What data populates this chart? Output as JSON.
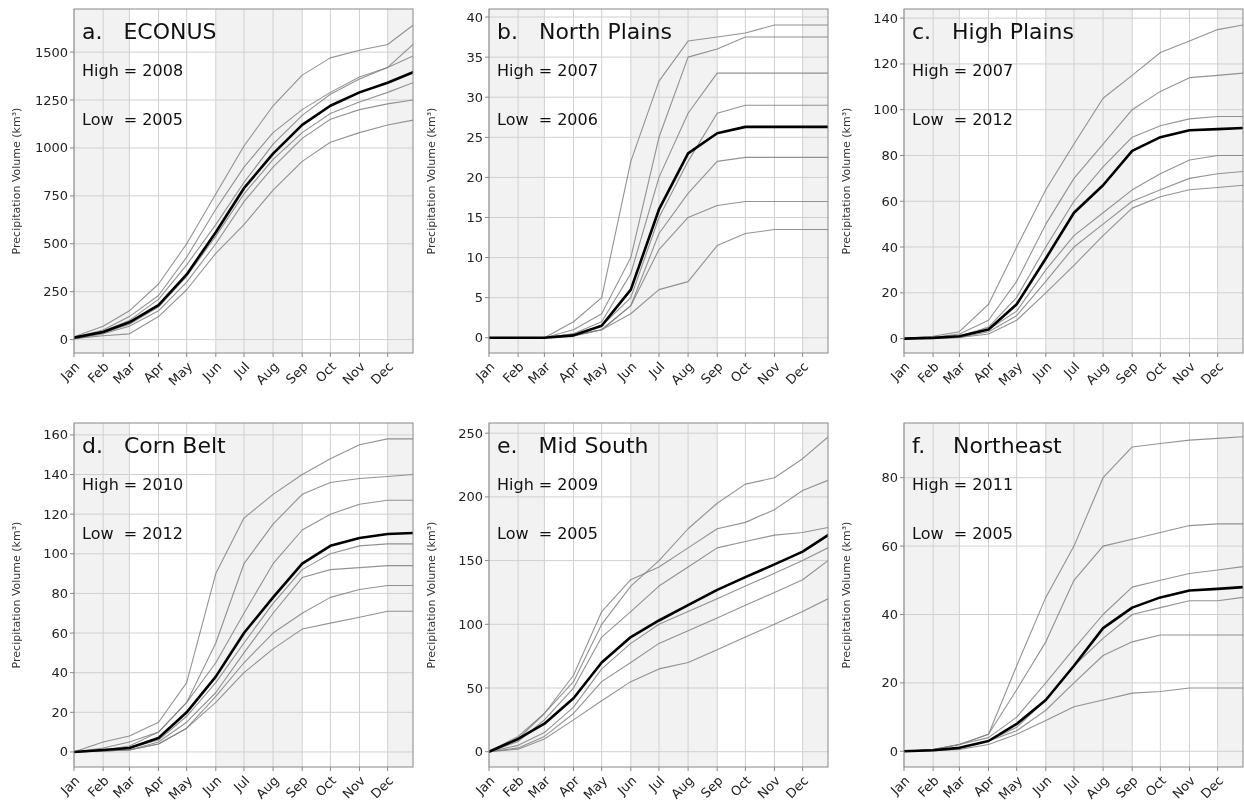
{
  "chart_data": [
    {
      "type": "line",
      "title": "a.   ECONUS",
      "ylabel": "Precipitation Volume (km³)",
      "annotations": [
        "High = 2008",
        "Low  = 2005"
      ],
      "x": [
        "--01-01",
        "--02-01",
        "--03-01",
        "--04-01",
        "--05-01",
        "--06-01",
        "--07-01",
        "--08-01",
        "--09-01",
        "--10-01",
        "--11-01",
        "--12-01",
        "--12-28"
      ],
      "xlim": [
        "--01-01",
        "--12-28"
      ],
      "xticks": [
        {
          "value": "--01-01",
          "label": "Jan"
        },
        {
          "value": "--02-01",
          "label": "Feb"
        },
        {
          "value": "--03-01",
          "label": "Mar"
        },
        {
          "value": "--04-01",
          "label": "Apr"
        },
        {
          "value": "--05-01",
          "label": "May"
        },
        {
          "value": "--06-01",
          "label": "Jun"
        },
        {
          "value": "--07-01",
          "label": "Jul"
        },
        {
          "value": "--08-01",
          "label": "Aug"
        },
        {
          "value": "--09-01",
          "label": "Sep"
        },
        {
          "value": "--10-01",
          "label": "Oct"
        },
        {
          "value": "--11-01",
          "label": "Nov"
        },
        {
          "value": "--12-01",
          "label": "Dec"
        }
      ],
      "ylim": [
        -70,
        1725
      ],
      "yticks": [
        0,
        250,
        500,
        750,
        1000,
        1250,
        1500
      ],
      "grid": true,
      "bands": [
        {
          "axis": "x",
          "from": "--01-01",
          "to": "--03-01",
          "color": "#f2f2f2"
        },
        {
          "axis": "x",
          "from": "--06-01",
          "to": "--09-01",
          "color": "#f2f2f2"
        },
        {
          "axis": "x",
          "from": "--12-01",
          "to": "--12-28",
          "color": "#f2f2f2"
        }
      ],
      "series": [
        {
          "color": "#808080",
          "values": [
            15,
            70,
            150,
            290,
            500,
            760,
            1010,
            1220,
            1380,
            1470,
            1510,
            1540,
            1640
          ]
        },
        {
          "color": "#808080",
          "values": [
            10,
            50,
            120,
            230,
            430,
            680,
            900,
            1080,
            1200,
            1290,
            1370,
            1420,
            1540
          ]
        },
        {
          "color": "#808080",
          "values": [
            10,
            45,
            100,
            210,
            390,
            600,
            820,
            1020,
            1170,
            1280,
            1360,
            1420,
            1480
          ]
        },
        {
          "color": "#808080",
          "values": [
            5,
            35,
            80,
            170,
            330,
            540,
            760,
            940,
            1080,
            1180,
            1240,
            1290,
            1340
          ]
        },
        {
          "color": "#808080",
          "values": [
            5,
            30,
            70,
            150,
            300,
            500,
            720,
            900,
            1050,
            1150,
            1200,
            1230,
            1250
          ]
        },
        {
          "color": "#808080",
          "values": [
            5,
            20,
            30,
            120,
            260,
            450,
            600,
            780,
            930,
            1030,
            1080,
            1120,
            1145
          ]
        },
        {
          "color": "#000000",
          "values": [
            10,
            40,
            90,
            180,
            340,
            560,
            790,
            970,
            1120,
            1220,
            1290,
            1340,
            1395
          ]
        }
      ]
    },
    {
      "type": "line",
      "title": "b.   North Plains",
      "ylabel": "Precipitation Volume (km³)",
      "annotations": [
        "High = 2007",
        "Low  = 2006"
      ],
      "x": [
        "--01-01",
        "--02-01",
        "--03-01",
        "--04-01",
        "--05-01",
        "--06-01",
        "--07-01",
        "--08-01",
        "--09-01",
        "--10-01",
        "--11-01",
        "--12-01",
        "--12-28"
      ],
      "xlim": [
        "--01-01",
        "--12-28"
      ],
      "xticks": [
        {
          "value": "--01-01",
          "label": "Jan"
        },
        {
          "value": "--02-01",
          "label": "Feb"
        },
        {
          "value": "--03-01",
          "label": "Mar"
        },
        {
          "value": "--04-01",
          "label": "Apr"
        },
        {
          "value": "--05-01",
          "label": "May"
        },
        {
          "value": "--06-01",
          "label": "Jun"
        },
        {
          "value": "--07-01",
          "label": "Jul"
        },
        {
          "value": "--08-01",
          "label": "Aug"
        },
        {
          "value": "--09-01",
          "label": "Sep"
        },
        {
          "value": "--10-01",
          "label": "Oct"
        },
        {
          "value": "--11-01",
          "label": "Nov"
        },
        {
          "value": "--12-01",
          "label": "Dec"
        }
      ],
      "ylim": [
        -1.9,
        41
      ],
      "yticks": [
        0,
        5,
        10,
        15,
        20,
        25,
        30,
        35,
        40
      ],
      "grid": true,
      "bands": [
        {
          "axis": "x",
          "from": "--01-01",
          "to": "--03-01",
          "color": "#f2f2f2"
        },
        {
          "axis": "x",
          "from": "--06-01",
          "to": "--09-01",
          "color": "#f2f2f2"
        },
        {
          "axis": "x",
          "from": "--12-01",
          "to": "--12-28",
          "color": "#f2f2f2"
        }
      ],
      "series": [
        {
          "color": "#808080",
          "values": [
            0,
            0,
            0,
            2,
            5,
            22,
            32,
            37,
            37.5,
            38,
            39,
            39,
            39
          ]
        },
        {
          "color": "#808080",
          "values": [
            0,
            0,
            0,
            1,
            3,
            10,
            25,
            35,
            36,
            37.5,
            37.5,
            37.5,
            37.5
          ]
        },
        {
          "color": "#808080",
          "values": [
            0,
            0,
            0,
            0.5,
            2,
            8,
            20,
            28,
            33,
            33,
            33,
            33,
            33
          ]
        },
        {
          "color": "#808080",
          "values": [
            0,
            0,
            0,
            0.5,
            1.5,
            5,
            15,
            22,
            28,
            29,
            29,
            29,
            29
          ]
        },
        {
          "color": "#808080",
          "values": [
            0,
            0,
            0,
            0.3,
            1,
            4,
            13,
            18,
            22,
            22.5,
            22.5,
            22.5,
            22.5
          ]
        },
        {
          "color": "#808080",
          "values": [
            0,
            0,
            0,
            0.2,
            1,
            4,
            11,
            15,
            16.5,
            17,
            17,
            17,
            17
          ]
        },
        {
          "color": "#808080",
          "values": [
            0,
            0,
            0,
            0.3,
            1,
            3,
            6,
            7,
            11.5,
            13,
            13.5,
            13.5,
            13.5
          ]
        },
        {
          "color": "#000000",
          "values": [
            0,
            0,
            0,
            0.3,
            1.5,
            6,
            16,
            23,
            25.5,
            26.3,
            26.3,
            26.3,
            26.3
          ]
        }
      ]
    },
    {
      "type": "line",
      "title": "c.   High Plains",
      "ylabel": "Precipitation Volume (km³)",
      "annotations": [
        "High = 2007",
        "Low  = 2012"
      ],
      "x": [
        "--01-01",
        "--02-01",
        "--03-01",
        "--04-01",
        "--05-01",
        "--06-01",
        "--07-01",
        "--08-01",
        "--09-01",
        "--10-01",
        "--11-01",
        "--12-01",
        "--12-28"
      ],
      "xlim": [
        "--01-01",
        "--12-28"
      ],
      "xticks": [
        {
          "value": "--01-01",
          "label": "Jan"
        },
        {
          "value": "--02-01",
          "label": "Feb"
        },
        {
          "value": "--03-01",
          "label": "Mar"
        },
        {
          "value": "--04-01",
          "label": "Apr"
        },
        {
          "value": "--05-01",
          "label": "May"
        },
        {
          "value": "--06-01",
          "label": "Jun"
        },
        {
          "value": "--07-01",
          "label": "Jul"
        },
        {
          "value": "--08-01",
          "label": "Aug"
        },
        {
          "value": "--09-01",
          "label": "Sep"
        },
        {
          "value": "--10-01",
          "label": "Oct"
        },
        {
          "value": "--11-01",
          "label": "Nov"
        },
        {
          "value": "--12-01",
          "label": "Dec"
        }
      ],
      "ylim": [
        -6.3,
        144
      ],
      "yticks": [
        0,
        20,
        40,
        60,
        80,
        100,
        120,
        140
      ],
      "grid": true,
      "bands": [
        {
          "axis": "x",
          "from": "--01-01",
          "to": "--03-01",
          "color": "#f2f2f2"
        },
        {
          "axis": "x",
          "from": "--06-01",
          "to": "--09-01",
          "color": "#f2f2f2"
        },
        {
          "axis": "x",
          "from": "--12-01",
          "to": "--12-28",
          "color": "#f2f2f2"
        }
      ],
      "series": [
        {
          "color": "#808080",
          "values": [
            0,
            1,
            3,
            15,
            40,
            65,
            85,
            105,
            115,
            125,
            130,
            135,
            137
          ]
        },
        {
          "color": "#808080",
          "values": [
            0,
            0.5,
            2,
            8,
            25,
            50,
            70,
            85,
            100,
            108,
            114,
            115,
            116
          ]
        },
        {
          "color": "#808080",
          "values": [
            0,
            0.3,
            1,
            5,
            18,
            40,
            60,
            75,
            88,
            93,
            96,
            97,
            97
          ]
        },
        {
          "color": "#808080",
          "values": [
            0,
            0.3,
            1,
            4,
            12,
            30,
            45,
            55,
            65,
            72,
            78,
            80,
            80
          ]
        },
        {
          "color": "#808080",
          "values": [
            0,
            0.2,
            0.5,
            3,
            10,
            25,
            40,
            50,
            60,
            65,
            70,
            72,
            73
          ]
        },
        {
          "color": "#808080",
          "values": [
            0,
            0.2,
            0.5,
            2,
            8,
            20,
            32,
            45,
            57,
            62,
            65,
            66,
            67
          ]
        },
        {
          "color": "#000000",
          "values": [
            0,
            0.3,
            1,
            4,
            15,
            35,
            55,
            67,
            82,
            88,
            91,
            91.5,
            92
          ]
        }
      ]
    },
    {
      "type": "line",
      "title": "d.   Corn Belt",
      "ylabel": "Precipitation Volume (km³)",
      "annotations": [
        "High = 2010",
        "Low  = 2012"
      ],
      "x": [
        "--01-01",
        "--02-01",
        "--03-01",
        "--04-01",
        "--05-01",
        "--06-01",
        "--07-01",
        "--08-01",
        "--09-01",
        "--10-01",
        "--11-01",
        "--12-01",
        "--12-28"
      ],
      "xlim": [
        "--01-01",
        "--12-28"
      ],
      "xticks": [
        {
          "value": "--01-01",
          "label": "Jan"
        },
        {
          "value": "--02-01",
          "label": "Feb"
        },
        {
          "value": "--03-01",
          "label": "Mar"
        },
        {
          "value": "--04-01",
          "label": "Apr"
        },
        {
          "value": "--05-01",
          "label": "May"
        },
        {
          "value": "--06-01",
          "label": "Jun"
        },
        {
          "value": "--07-01",
          "label": "Jul"
        },
        {
          "value": "--08-01",
          "label": "Aug"
        },
        {
          "value": "--09-01",
          "label": "Sep"
        },
        {
          "value": "--10-01",
          "label": "Oct"
        },
        {
          "value": "--11-01",
          "label": "Nov"
        },
        {
          "value": "--12-01",
          "label": "Dec"
        }
      ],
      "ylim": [
        -7.6,
        166
      ],
      "yticks": [
        0,
        20,
        40,
        60,
        80,
        100,
        120,
        140,
        160
      ],
      "grid": true,
      "bands": [
        {
          "axis": "x",
          "from": "--01-01",
          "to": "--03-01",
          "color": "#f2f2f2"
        },
        {
          "axis": "x",
          "from": "--06-01",
          "to": "--09-01",
          "color": "#f2f2f2"
        },
        {
          "axis": "x",
          "from": "--12-01",
          "to": "--12-28",
          "color": "#f2f2f2"
        }
      ],
      "series": [
        {
          "color": "#808080",
          "values": [
            0,
            5,
            8,
            15,
            35,
            90,
            118,
            130,
            140,
            148,
            155,
            158,
            158
          ]
        },
        {
          "color": "#808080",
          "values": [
            0,
            2,
            5,
            10,
            25,
            55,
            95,
            115,
            130,
            136,
            138,
            139,
            140
          ]
        },
        {
          "color": "#808080",
          "values": [
            0,
            1,
            3,
            10,
            25,
            45,
            70,
            95,
            112,
            120,
            125,
            127,
            127
          ]
        },
        {
          "color": "#808080",
          "values": [
            0,
            1,
            2,
            6,
            18,
            35,
            55,
            75,
            92,
            100,
            104,
            105,
            105
          ]
        },
        {
          "color": "#808080",
          "values": [
            0,
            0.5,
            1,
            5,
            15,
            30,
            50,
            70,
            88,
            92,
            93,
            94,
            94
          ]
        },
        {
          "color": "#808080",
          "values": [
            0,
            0.5,
            1,
            4,
            12,
            28,
            45,
            60,
            70,
            78,
            82,
            84,
            84
          ]
        },
        {
          "color": "#808080",
          "values": [
            0,
            0.5,
            1,
            4,
            12,
            25,
            40,
            52,
            62,
            65,
            68,
            71,
            71
          ]
        },
        {
          "color": "#000000",
          "values": [
            0,
            1,
            2,
            7,
            20,
            38,
            60,
            78,
            95,
            104,
            108,
            110,
            110.5
          ]
        }
      ]
    },
    {
      "type": "line",
      "title": "e.   Mid South",
      "ylabel": "Precipitation Volume (km³)",
      "annotations": [
        "High = 2009",
        "Low  = 2005"
      ],
      "x": [
        "--01-01",
        "--02-01",
        "--03-01",
        "--04-01",
        "--05-01",
        "--06-01",
        "--07-01",
        "--08-01",
        "--09-01",
        "--10-01",
        "--11-01",
        "--12-01",
        "--12-28"
      ],
      "xlim": [
        "--01-01",
        "--12-28"
      ],
      "xticks": [
        {
          "value": "--01-01",
          "label": "Jan"
        },
        {
          "value": "--02-01",
          "label": "Feb"
        },
        {
          "value": "--03-01",
          "label": "Mar"
        },
        {
          "value": "--04-01",
          "label": "Apr"
        },
        {
          "value": "--05-01",
          "label": "May"
        },
        {
          "value": "--06-01",
          "label": "Jun"
        },
        {
          "value": "--07-01",
          "label": "Jul"
        },
        {
          "value": "--08-01",
          "label": "Aug"
        },
        {
          "value": "--09-01",
          "label": "Sep"
        },
        {
          "value": "--10-01",
          "label": "Oct"
        },
        {
          "value": "--11-01",
          "label": "Nov"
        },
        {
          "value": "--12-01",
          "label": "Dec"
        }
      ],
      "ylim": [
        -12,
        258
      ],
      "yticks": [
        0,
        50,
        100,
        150,
        200,
        250
      ],
      "grid": true,
      "bands": [
        {
          "axis": "x",
          "from": "--01-01",
          "to": "--03-01",
          "color": "#f2f2f2"
        },
        {
          "axis": "x",
          "from": "--06-01",
          "to": "--09-01",
          "color": "#f2f2f2"
        },
        {
          "axis": "x",
          "from": "--12-01",
          "to": "--12-28",
          "color": "#f2f2f2"
        }
      ],
      "series": [
        {
          "color": "#808080",
          "values": [
            0,
            12,
            30,
            55,
            100,
            130,
            150,
            175,
            195,
            210,
            215,
            230,
            247
          ]
        },
        {
          "color": "#808080",
          "values": [
            0,
            10,
            30,
            60,
            110,
            135,
            145,
            160,
            175,
            180,
            190,
            205,
            213
          ]
        },
        {
          "color": "#808080",
          "values": [
            0,
            8,
            25,
            50,
            90,
            110,
            130,
            145,
            160,
            165,
            170,
            172,
            176
          ]
        },
        {
          "color": "#808080",
          "values": [
            0,
            5,
            15,
            35,
            65,
            85,
            100,
            110,
            120,
            130,
            140,
            150,
            160
          ]
        },
        {
          "color": "#808080",
          "values": [
            0,
            3,
            12,
            30,
            55,
            70,
            85,
            95,
            105,
            115,
            125,
            135,
            150
          ]
        },
        {
          "color": "#808080",
          "values": [
            0,
            2,
            10,
            25,
            40,
            55,
            65,
            70,
            80,
            90,
            100,
            110,
            120
          ]
        },
        {
          "color": "#000000",
          "values": [
            0,
            10,
            22,
            42,
            70,
            90,
            103,
            115,
            127,
            137,
            147,
            157,
            170
          ]
        }
      ]
    },
    {
      "type": "line",
      "title": "f.    Northeast",
      "ylabel": "Precipitation Volume (km³)",
      "annotations": [
        "High = 2011",
        "Low  = 2005"
      ],
      "x": [
        "--01-01",
        "--02-01",
        "--03-01",
        "--04-01",
        "--05-01",
        "--06-01",
        "--07-01",
        "--08-01",
        "--09-01",
        "--10-01",
        "--11-01",
        "--12-01",
        "--12-28"
      ],
      "xlim": [
        "--01-01",
        "--12-28"
      ],
      "xticks": [
        {
          "value": "--01-01",
          "label": "Jan"
        },
        {
          "value": "--02-01",
          "label": "Feb"
        },
        {
          "value": "--03-01",
          "label": "Mar"
        },
        {
          "value": "--04-01",
          "label": "Apr"
        },
        {
          "value": "--05-01",
          "label": "May"
        },
        {
          "value": "--06-01",
          "label": "Jun"
        },
        {
          "value": "--07-01",
          "label": "Jul"
        },
        {
          "value": "--08-01",
          "label": "Aug"
        },
        {
          "value": "--09-01",
          "label": "Sep"
        },
        {
          "value": "--10-01",
          "label": "Oct"
        },
        {
          "value": "--11-01",
          "label": "Nov"
        },
        {
          "value": "--12-01",
          "label": "Dec"
        }
      ],
      "ylim": [
        -4.6,
        96
      ],
      "yticks": [
        0,
        20,
        40,
        60,
        80
      ],
      "grid": true,
      "bands": [
        {
          "axis": "x",
          "from": "--01-01",
          "to": "--03-01",
          "color": "#f2f2f2"
        },
        {
          "axis": "x",
          "from": "--06-01",
          "to": "--09-01",
          "color": "#f2f2f2"
        },
        {
          "axis": "x",
          "from": "--12-01",
          "to": "--12-28",
          "color": "#f2f2f2"
        }
      ],
      "series": [
        {
          "color": "#808080",
          "values": [
            0,
            0.5,
            2,
            5,
            25,
            45,
            60,
            80,
            89,
            90,
            91,
            91.5,
            92
          ]
        },
        {
          "color": "#808080",
          "values": [
            0,
            0.5,
            2,
            5,
            18,
            32,
            50,
            60,
            62,
            64,
            66,
            66.5,
            66.5
          ]
        },
        {
          "color": "#808080",
          "values": [
            0,
            0.5,
            2,
            4,
            10,
            20,
            30,
            40,
            48,
            50,
            52,
            53,
            54
          ]
        },
        {
          "color": "#808080",
          "values": [
            0,
            0.3,
            1,
            3,
            7,
            15,
            25,
            33,
            40,
            42,
            44,
            44,
            45
          ]
        },
        {
          "color": "#808080",
          "values": [
            0,
            0.3,
            1,
            3,
            6,
            12,
            20,
            28,
            32,
            34,
            34,
            34,
            34
          ]
        },
        {
          "color": "#808080",
          "values": [
            0,
            0.2,
            0.5,
            2,
            5,
            9,
            13,
            15,
            17,
            17.5,
            18.5,
            18.5,
            18.5
          ]
        },
        {
          "color": "#000000",
          "values": [
            0,
            0.3,
            1,
            3,
            8,
            15,
            25,
            36,
            42,
            45,
            47,
            47.5,
            48
          ]
        }
      ]
    }
  ]
}
